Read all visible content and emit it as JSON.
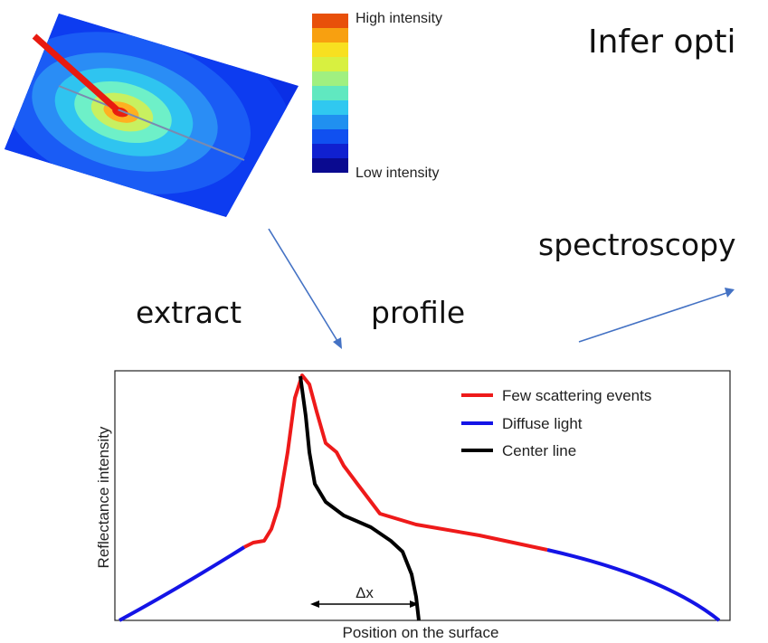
{
  "colorbar": {
    "high_label": "High intensity",
    "low_label": "Low intensity"
  },
  "title": "Infer opti",
  "texts": {
    "spectroscopy": "spectroscopy",
    "extract": "extract",
    "profile": "profile"
  },
  "plot": {
    "y_label": "Reflectance intensity",
    "x_label": "Position on the surface",
    "delta_label": "Δx",
    "legend": [
      "Few scattering events",
      "Diffuse light",
      "Center line"
    ]
  }
}
